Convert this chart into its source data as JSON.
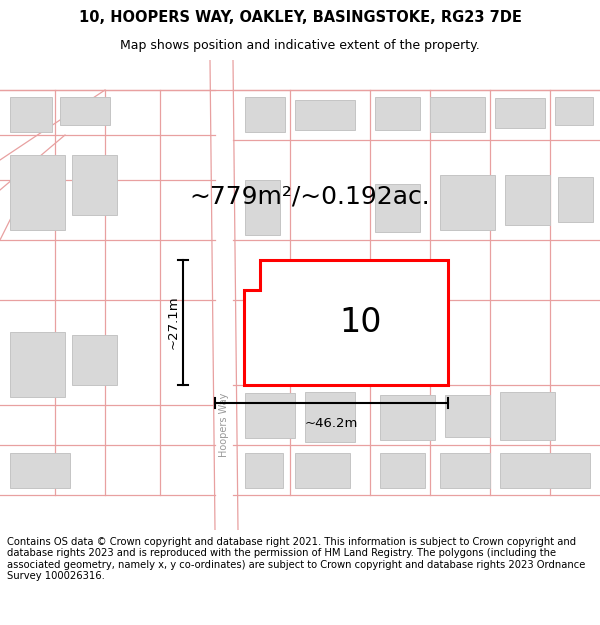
{
  "title_line1": "10, HOOPERS WAY, OAKLEY, BASINGSTOKE, RG23 7DE",
  "title_line2": "Map shows position and indicative extent of the property.",
  "area_text": "~779m²/~0.192ac.",
  "width_label": "~46.2m",
  "height_label": "~27.1m",
  "number_label": "10",
  "road_label": "Hoopers Way",
  "footer_text": "Contains OS data © Crown copyright and database right 2021. This information is subject to Crown copyright and database rights 2023 and is reproduced with the permission of HM Land Registry. The polygons (including the associated geometry, namely x, y co-ordinates) are subject to Crown copyright and database rights 2023 Ordnance Survey 100026316.",
  "map_bg": "#f7f6f4",
  "parcel_line_color": "#e8a0a0",
  "building_fill": "#d8d8d8",
  "building_stroke": "#c4c4c4",
  "plot_fill": "#ffffff",
  "plot_stroke": "#ff0000",
  "title_fontsize": 10.5,
  "subtitle_fontsize": 9,
  "area_fontsize": 18,
  "footer_fontsize": 7.2,
  "road_label_color": "#999999"
}
